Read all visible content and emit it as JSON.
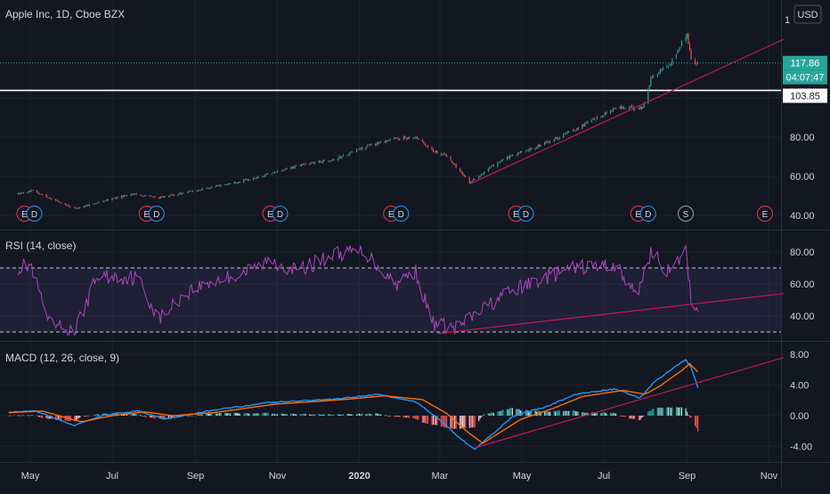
{
  "chart_data": {
    "type": "candlestick",
    "title": "Apple Inc, 1D, Cboe BZX",
    "currency": "USD",
    "x_labels": [
      "May",
      "Jul",
      "Sep",
      "Nov",
      "2020",
      "Mar",
      "May",
      "Jul",
      "Sep",
      "Nov"
    ],
    "price": {
      "yticks": [
        "40.00",
        "60.00",
        "80.00"
      ],
      "top_tick": "1",
      "last_price": "117.86",
      "countdown": "04:07:47",
      "hline": "103.85",
      "key_points": [
        {
          "d": "2019-04-22",
          "v": 51
        },
        {
          "d": "2019-05-03",
          "v": 52.5
        },
        {
          "d": "2019-06-03",
          "v": 43.5
        },
        {
          "d": "2019-07-15",
          "v": 51
        },
        {
          "d": "2019-08-05",
          "v": 49
        },
        {
          "d": "2019-09-10",
          "v": 54
        },
        {
          "d": "2019-10-15",
          "v": 59
        },
        {
          "d": "2019-11-20",
          "v": 66
        },
        {
          "d": "2019-12-15",
          "v": 69
        },
        {
          "d": "2020-01-05",
          "v": 75
        },
        {
          "d": "2020-01-25",
          "v": 79
        },
        {
          "d": "2020-02-12",
          "v": 80
        },
        {
          "d": "2020-02-25",
          "v": 73
        },
        {
          "d": "2020-03-05",
          "v": 71
        },
        {
          "d": "2020-03-23",
          "v": 57
        },
        {
          "d": "2020-04-15",
          "v": 68
        },
        {
          "d": "2020-05-15",
          "v": 76
        },
        {
          "d": "2020-06-10",
          "v": 84
        },
        {
          "d": "2020-07-10",
          "v": 95
        },
        {
          "d": "2020-07-30",
          "v": 95
        },
        {
          "d": "2020-08-05",
          "v": 110
        },
        {
          "d": "2020-08-20",
          "v": 118
        },
        {
          "d": "2020-09-01",
          "v": 133
        },
        {
          "d": "2020-09-05",
          "v": 116
        },
        {
          "d": "2020-09-09",
          "v": 117.86
        }
      ],
      "trendline": {
        "start": {
          "d": "2020-03-23",
          "v": 56
        },
        "end": {
          "d": "2020-11-12",
          "v": 130
        }
      },
      "earnings": [
        {
          "d": "2019-04-30",
          "labels": [
            "E",
            "D"
          ]
        },
        {
          "d": "2019-07-30",
          "labels": [
            "E",
            "D"
          ]
        },
        {
          "d": "2019-10-30",
          "labels": [
            "E",
            "D"
          ]
        },
        {
          "d": "2020-01-28",
          "labels": [
            "E",
            "D"
          ]
        },
        {
          "d": "2020-04-30",
          "labels": [
            "E",
            "D"
          ]
        },
        {
          "d": "2020-07-30",
          "labels": [
            "E",
            "D"
          ]
        },
        {
          "d": "2020-08-31",
          "labels": [
            "S"
          ]
        },
        {
          "d": "2020-10-29",
          "labels": [
            "E"
          ]
        }
      ]
    },
    "rsi": {
      "title": "RSI (14, close)",
      "yticks": [
        "40.00",
        "60.00",
        "80.00"
      ],
      "bands": [
        70,
        30
      ],
      "key_points": [
        {
          "d": "2019-04-20",
          "v": 70
        },
        {
          "d": "2019-05-01",
          "v": 72
        },
        {
          "d": "2019-05-15",
          "v": 35
        },
        {
          "d": "2019-06-03",
          "v": 30
        },
        {
          "d": "2019-06-20",
          "v": 65
        },
        {
          "d": "2019-07-20",
          "v": 64
        },
        {
          "d": "2019-08-05",
          "v": 38
        },
        {
          "d": "2019-08-25",
          "v": 55
        },
        {
          "d": "2019-09-15",
          "v": 62
        },
        {
          "d": "2019-10-05",
          "v": 66
        },
        {
          "d": "2019-10-28",
          "v": 75
        },
        {
          "d": "2019-11-15",
          "v": 68
        },
        {
          "d": "2019-12-15",
          "v": 79
        },
        {
          "d": "2020-01-05",
          "v": 80
        },
        {
          "d": "2020-01-28",
          "v": 60
        },
        {
          "d": "2020-02-12",
          "v": 68
        },
        {
          "d": "2020-02-24",
          "v": 36
        },
        {
          "d": "2020-03-12",
          "v": 32
        },
        {
          "d": "2020-03-23",
          "v": 38
        },
        {
          "d": "2020-04-15",
          "v": 52
        },
        {
          "d": "2020-05-15",
          "v": 63
        },
        {
          "d": "2020-06-10",
          "v": 70
        },
        {
          "d": "2020-07-10",
          "v": 72
        },
        {
          "d": "2020-07-25",
          "v": 52
        },
        {
          "d": "2020-08-05",
          "v": 80
        },
        {
          "d": "2020-08-20",
          "v": 66
        },
        {
          "d": "2020-08-31",
          "v": 82
        },
        {
          "d": "2020-09-04",
          "v": 50
        },
        {
          "d": "2020-09-08",
          "v": 44
        },
        {
          "d": "2020-09-09",
          "v": 47
        }
      ],
      "trendline": {
        "start": {
          "d": "2020-02-28",
          "v": 29
        },
        "end": {
          "d": "2020-11-12",
          "v": 54
        }
      }
    },
    "macd": {
      "title": "MACD (12, 26, close, 9)",
      "yticks": [
        "-4.00",
        "0.00",
        "4.00",
        "8.00"
      ],
      "macd_points": [
        {
          "d": "2019-04-15",
          "v": 0.4
        },
        {
          "d": "2019-05-05",
          "v": 0.6
        },
        {
          "d": "2019-06-03",
          "v": -1.3
        },
        {
          "d": "2019-06-25",
          "v": 0.1
        },
        {
          "d": "2019-07-20",
          "v": 0.6
        },
        {
          "d": "2019-08-10",
          "v": -0.4
        },
        {
          "d": "2019-09-10",
          "v": 0.6
        },
        {
          "d": "2019-10-25",
          "v": 1.7
        },
        {
          "d": "2019-12-15",
          "v": 2.2
        },
        {
          "d": "2020-01-15",
          "v": 2.8
        },
        {
          "d": "2020-02-12",
          "v": 1.8
        },
        {
          "d": "2020-03-01",
          "v": -0.5
        },
        {
          "d": "2020-03-15",
          "v": -2.8
        },
        {
          "d": "2020-03-27",
          "v": -4.4
        },
        {
          "d": "2020-04-25",
          "v": 0
        },
        {
          "d": "2020-05-20",
          "v": 1.2
        },
        {
          "d": "2020-06-10",
          "v": 2.8
        },
        {
          "d": "2020-07-10",
          "v": 3.5
        },
        {
          "d": "2020-07-28",
          "v": 2.3
        },
        {
          "d": "2020-08-08",
          "v": 4.5
        },
        {
          "d": "2020-08-25",
          "v": 6.6
        },
        {
          "d": "2020-08-31",
          "v": 7.3
        },
        {
          "d": "2020-09-04",
          "v": 6.3
        },
        {
          "d": "2020-09-09",
          "v": 3.7
        }
      ],
      "signal_points": [
        {
          "d": "2019-04-15",
          "v": 0.4
        },
        {
          "d": "2019-05-10",
          "v": 0.6
        },
        {
          "d": "2019-06-08",
          "v": -0.8
        },
        {
          "d": "2019-07-01",
          "v": 0
        },
        {
          "d": "2019-07-25",
          "v": 0.5
        },
        {
          "d": "2019-08-15",
          "v": 0
        },
        {
          "d": "2019-09-15",
          "v": 0.4
        },
        {
          "d": "2019-10-30",
          "v": 1.5
        },
        {
          "d": "2019-12-20",
          "v": 2.1
        },
        {
          "d": "2020-01-20",
          "v": 2.6
        },
        {
          "d": "2020-02-17",
          "v": 2.1
        },
        {
          "d": "2020-03-06",
          "v": 0.3
        },
        {
          "d": "2020-03-22",
          "v": -2.2
        },
        {
          "d": "2020-04-02",
          "v": -3.6
        },
        {
          "d": "2020-04-30",
          "v": -0.5
        },
        {
          "d": "2020-05-25",
          "v": 1.0
        },
        {
          "d": "2020-06-15",
          "v": 2.5
        },
        {
          "d": "2020-07-15",
          "v": 3.3
        },
        {
          "d": "2020-08-01",
          "v": 2.8
        },
        {
          "d": "2020-08-12",
          "v": 3.9
        },
        {
          "d": "2020-08-28",
          "v": 5.9
        },
        {
          "d": "2020-09-03",
          "v": 6.8
        },
        {
          "d": "2020-09-09",
          "v": 5.7
        }
      ],
      "trendline": {
        "start": {
          "d": "2020-03-27",
          "v": -4.2
        },
        "end": {
          "d": "2020-11-12",
          "v": 7.6
        }
      }
    }
  }
}
